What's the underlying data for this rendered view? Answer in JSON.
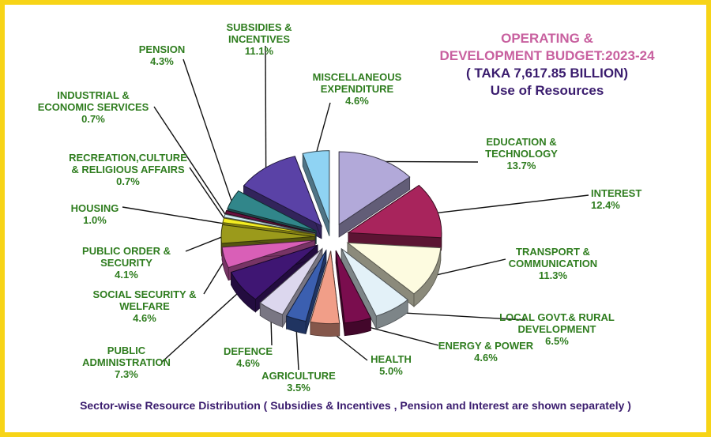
{
  "title": {
    "line1": "OPERATING &",
    "line2": "DEVELOPMENT BUDGET:2023-24",
    "line3": "( TAKA 7,617.85 BILLION)",
    "line4": "Use of Resources"
  },
  "footer": "Sector-wise Resource Distribution ( Subsidies  & Incentives , Pension and Interest are shown separately )",
  "colors": {
    "border": "#f7d417",
    "label": "#2f7d1f",
    "title_pink": "#c8609f",
    "title_purple": "#3a1c6e"
  },
  "chart_data": {
    "type": "pie",
    "title": "OPERATING & DEVELOPMENT BUDGET:2023-24 ( TAKA 7,617.85 BILLION) Use of Resources",
    "unit": "%",
    "slices": [
      {
        "name_lines": [
          "EDUCATION &",
          "TECHNOLOGY"
        ],
        "value": 13.7,
        "label": "13.7%",
        "color": "#b2a9d9"
      },
      {
        "name_lines": [
          "INTEREST"
        ],
        "value": 12.4,
        "label": "12.4%",
        "color": "#a8245c"
      },
      {
        "name_lines": [
          "TRANSPORT &",
          "COMMUNICATION"
        ],
        "value": 11.3,
        "label": "11.3%",
        "color": "#fdfbe0"
      },
      {
        "name_lines": [
          "LOCAL GOVT.& RURAL",
          "DEVELOPMENT"
        ],
        "value": 6.5,
        "label": "6.5%",
        "color": "#e3f1f8"
      },
      {
        "name_lines": [
          "ENERGY & POWER"
        ],
        "value": 4.6,
        "label": "4.6%",
        "color": "#7a0d4e"
      },
      {
        "name_lines": [
          "HEALTH"
        ],
        "value": 5.0,
        "label": "5.0%",
        "color": "#f19e88"
      },
      {
        "name_lines": [
          "AGRICULTURE"
        ],
        "value": 3.5,
        "label": "3.5%",
        "color": "#3b5fb0"
      },
      {
        "name_lines": [
          "DEFENCE"
        ],
        "value": 4.6,
        "label": "4.6%",
        "color": "#dcd7ee"
      },
      {
        "name_lines": [
          "PUBLIC",
          "ADMINISTRATION"
        ],
        "value": 7.3,
        "label": "7.3%",
        "color": "#3f1673"
      },
      {
        "name_lines": [
          "SOCIAL SECURITY &",
          "WELFARE"
        ],
        "value": 4.6,
        "label": "4.6%",
        "color": "#d95fb7"
      },
      {
        "name_lines": [
          "PUBLIC ORDER &",
          "SECURITY"
        ],
        "value": 4.1,
        "label": "4.1%",
        "color": "#9b9a1b"
      },
      {
        "name_lines": [
          "HOUSING"
        ],
        "value": 1.0,
        "label": "1.0%",
        "color": "#f2ec22"
      },
      {
        "name_lines": [
          "RECREATION,CULTURE",
          "& RELIGIOUS AFFAIRS"
        ],
        "value": 0.7,
        "label": "0.7%",
        "color": "#d0ecf5"
      },
      {
        "name_lines": [
          "INDUSTRIAL &",
          "ECONOMIC SERVICES"
        ],
        "value": 0.7,
        "label": "0.7%",
        "color": "#6a1240"
      },
      {
        "name_lines": [
          "PENSION"
        ],
        "value": 4.3,
        "label": "4.3%",
        "color": "#31868a"
      },
      {
        "name_lines": [
          "SUBSIDIES &",
          "INCENTIVES"
        ],
        "value": 11.1,
        "label": "11.1%",
        "color": "#5a42a6"
      },
      {
        "name_lines": [
          "MISCELLANEOUS",
          "EXPENDITURE"
        ],
        "value": 4.6,
        "label": "4.6%",
        "color": "#8fd3f3"
      }
    ]
  }
}
